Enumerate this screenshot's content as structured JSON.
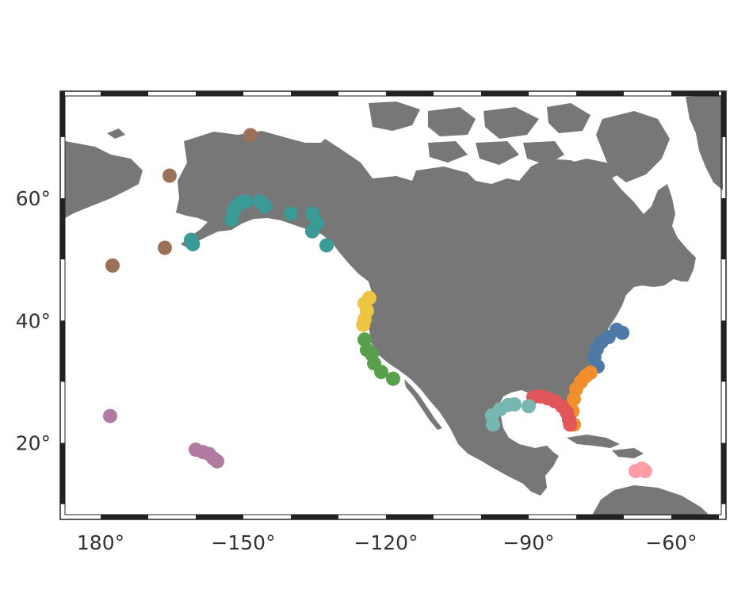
{
  "map": {
    "projection": "equirectangular",
    "lon_range": [
      -188.5,
      -48.5
    ],
    "lat_range": [
      7.5,
      77.5
    ],
    "land_color": "#777777",
    "ocean_color": "#ffffff",
    "frame_color": "#222222",
    "lon_ticks": [
      {
        "value": -180,
        "label": "180°"
      },
      {
        "value": -150,
        "label": "−150°"
      },
      {
        "value": -120,
        "label": "−120°"
      },
      {
        "value": -90,
        "label": "−90°"
      },
      {
        "value": -60,
        "label": "−60°"
      }
    ],
    "lat_ticks": [
      {
        "value": 20,
        "label": "20°"
      },
      {
        "value": 40,
        "label": "40°"
      },
      {
        "value": 60,
        "label": "60°"
      }
    ]
  },
  "chart_data": {
    "type": "scatter",
    "title": "",
    "xlabel": "",
    "ylabel": "",
    "xlim": [
      -188.5,
      -48.5
    ],
    "ylim": [
      7.5,
      77.5
    ],
    "series": [
      {
        "color": "#9b7159",
        "points": [
          [
            -148.5,
            70.3
          ],
          [
            -165.5,
            63.7
          ],
          [
            -166.5,
            51.9
          ],
          [
            -177.5,
            49.0
          ]
        ]
      },
      {
        "color": "#3a9a96",
        "points": [
          [
            -161,
            53.2
          ],
          [
            -160.6,
            52.5
          ],
          [
            -152.5,
            56.5
          ],
          [
            -152,
            58.0
          ],
          [
            -151.5,
            58.7
          ],
          [
            -150.5,
            59.3
          ],
          [
            -149.5,
            59.5
          ],
          [
            -146.5,
            59.5
          ],
          [
            -145.5,
            58.7
          ],
          [
            -140,
            57.5
          ],
          [
            -135.5,
            57.5
          ],
          [
            -134.5,
            56.0
          ],
          [
            -135.5,
            54.6
          ],
          [
            -132.5,
            52.3
          ]
        ]
      },
      {
        "color": "#ecc543",
        "points": [
          [
            -123.5,
            43.7
          ],
          [
            -124.5,
            42.8
          ],
          [
            -124,
            41.6
          ],
          [
            -124.5,
            40.2
          ],
          [
            -124.8,
            39.3
          ]
        ]
      },
      {
        "color": "#58a04c",
        "points": [
          [
            -124.5,
            36.9
          ],
          [
            -124,
            35.2
          ],
          [
            -123,
            34.5
          ],
          [
            -122.5,
            33.0
          ],
          [
            -121,
            31.6
          ],
          [
            -118.5,
            30.5
          ]
        ]
      },
      {
        "color": "#4e79a7",
        "points": [
          [
            -70.3,
            38.0
          ],
          [
            -71.5,
            38.5
          ],
          [
            -73.2,
            37.3
          ],
          [
            -74.7,
            36.5
          ],
          [
            -75.7,
            35.3
          ],
          [
            -76.2,
            34.0
          ],
          [
            -75.5,
            32.5
          ]
        ]
      },
      {
        "color": "#f28e2b",
        "points": [
          [
            -77,
            31.5
          ],
          [
            -78,
            30.9
          ],
          [
            -79,
            30.0
          ],
          [
            -80,
            28.8
          ],
          [
            -80.5,
            27.2
          ],
          [
            -80.8,
            25.2
          ],
          [
            -80.5,
            23.0
          ]
        ]
      },
      {
        "color": "#e15759",
        "points": [
          [
            -89,
            27.5
          ],
          [
            -87.5,
            27.6
          ],
          [
            -86,
            27.3
          ],
          [
            -84.5,
            26.8
          ],
          [
            -83,
            26.0
          ],
          [
            -82,
            25.0
          ],
          [
            -81.5,
            23.8
          ],
          [
            -81.3,
            23.0
          ]
        ]
      },
      {
        "color": "#76b7b2",
        "points": [
          [
            -97.5,
            23.0
          ],
          [
            -97.7,
            24.5
          ],
          [
            -96,
            25.5
          ],
          [
            -94.3,
            26.2
          ],
          [
            -93,
            26.3
          ],
          [
            -90,
            26.0
          ]
        ]
      },
      {
        "color": "#b07aa1",
        "points": [
          [
            -178,
            24.4
          ],
          [
            -160,
            18.9
          ],
          [
            -158.5,
            18.5
          ],
          [
            -157.2,
            18.2
          ],
          [
            -156.3,
            17.5
          ],
          [
            -155.5,
            17.0
          ]
        ]
      },
      {
        "color": "#ff9da7",
        "points": [
          [
            -67.5,
            15.4
          ],
          [
            -66.2,
            15.8
          ],
          [
            -65.5,
            15.4
          ]
        ]
      }
    ]
  }
}
